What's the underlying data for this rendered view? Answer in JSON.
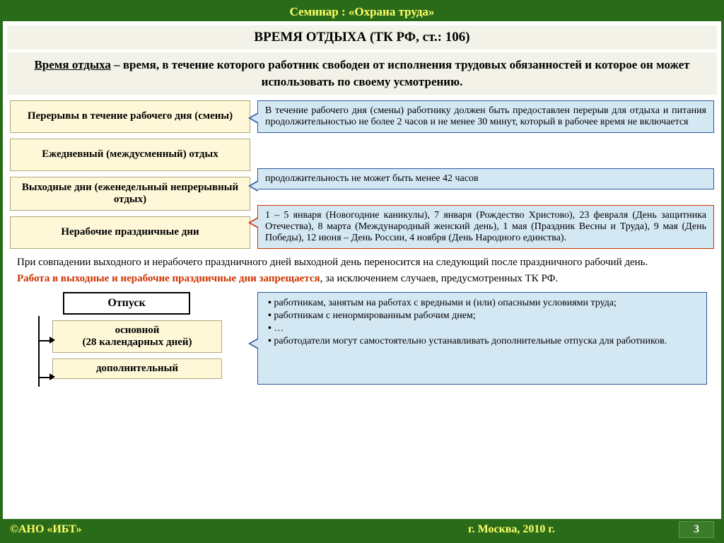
{
  "header": "Семинар : «Охрана труда»",
  "title": "ВРЕМЯ ОТДЫХА (ТК РФ, ст.: 106)",
  "definition_term": "Время отдыха",
  "definition_rest": " – время, в течение которого работник свободен от исполнения трудовых обязанностей и которое он может использовать по своему усмотрению.",
  "boxes": {
    "b1": "Перерывы в течение рабочего дня (смены)",
    "b2": "Ежедневный (междусменный) отдых",
    "b3": "Выходные дни (еженедельный непрерывный отдых)",
    "b4": "Нерабочие праздничные дни"
  },
  "callouts": {
    "c1": "В течение рабочего дня (смены) работнику должен быть предоставлен перерыв для отдыха и питания продолжительностью не более 2 часов и не менее 30 минут, который в рабочее время не включается",
    "c3": "продолжительность не может быть менее 42 часов",
    "c4": "1 – 5 января (Новогодние каникулы), 7 января (Рождество Христово), 23 февраля (День защитника Отечества), 8 марта (Международный женский день), 1 мая (Праздник Весны и Труда), 9 мая (День Победы), 12 июня – День России, 4 ноября (День Народного единства)."
  },
  "para1": "При совпадении выходного и нерабочего праздничного дней выходной день переносится на следующий после праздничного рабочий день.",
  "para2_red": "Работа в выходные и нерабочие праздничные дни запрещается",
  "para2_rest": ", за исключением случаев, предусмотренных ТК РФ.",
  "vacation": {
    "header": "Отпуск",
    "main": "основной\n(28 календарных дней)",
    "extra": "дополнительный",
    "list": [
      "работникам, занятым на работах с вредными и (или) опасными условиями труда;",
      "работникам с ненормированным рабочим днем;",
      "…",
      "работодатели могут самостоятельно устанавливать дополнительные отпуска для работников."
    ]
  },
  "footer": {
    "left": "©АНО «ИБТ»",
    "center": "г. Москва,  2010 г.",
    "page": "3"
  },
  "colors": {
    "green": "#2a6b1a",
    "yellow": "#ffff66",
    "box_bg": "#fff8d8",
    "callout_bg": "#d4e8f4",
    "callout_border": "#2a5a9a",
    "red": "#cc3300"
  }
}
